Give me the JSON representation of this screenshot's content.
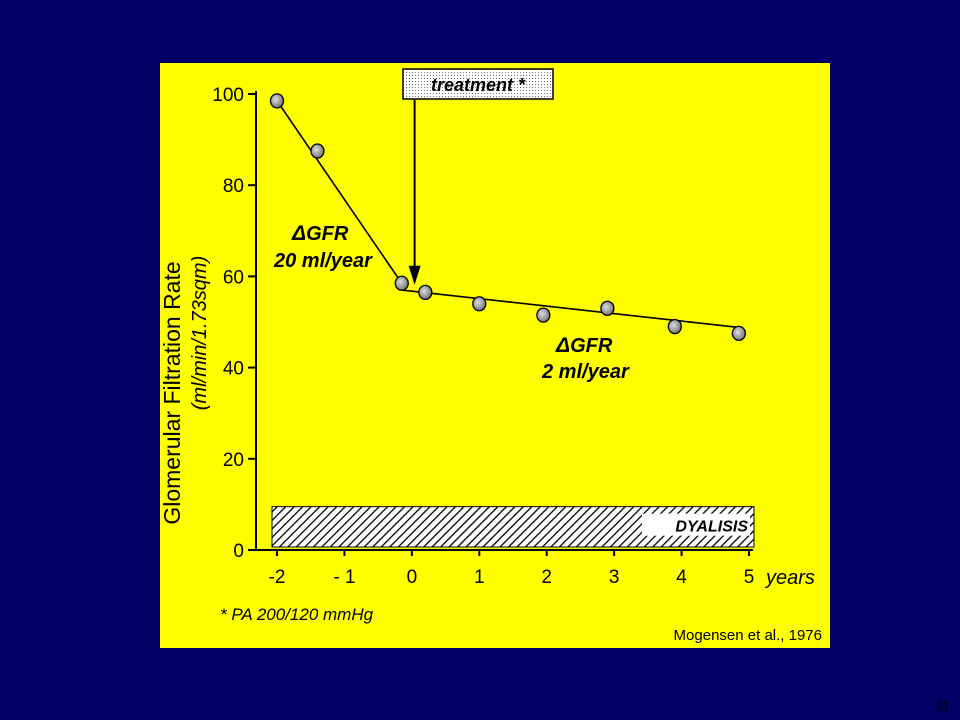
{
  "page_number": "31",
  "panel_color": "#ffff00",
  "background_color": "#000066",
  "chart_data": {
    "type": "scatter",
    "xlabel": "years",
    "ylabel": "Glomerular Filtration Rate",
    "ylabel_units": "(ml/min/1.73sqm)",
    "xlim": [
      -2,
      5
    ],
    "ylim": [
      0,
      100
    ],
    "x_ticks": [
      -2,
      -1,
      0,
      1,
      2,
      3,
      4,
      5
    ],
    "x_tick_labels": [
      "-2",
      "- 1",
      "0",
      "1",
      "2",
      "3",
      "4",
      "5"
    ],
    "y_ticks": [
      0,
      20,
      40,
      60,
      80,
      100
    ],
    "grid": false,
    "points": [
      {
        "x": -2.0,
        "y": 98.5
      },
      {
        "x": -1.4,
        "y": 87.5
      },
      {
        "x": -0.15,
        "y": 58.5
      },
      {
        "x": 0.2,
        "y": 56.5
      },
      {
        "x": 1.0,
        "y": 54.0
      },
      {
        "x": 1.95,
        "y": 51.5
      },
      {
        "x": 2.9,
        "y": 53.0
      },
      {
        "x": 3.9,
        "y": 49.0
      },
      {
        "x": 4.85,
        "y": 47.5
      }
    ],
    "fit_lines": [
      {
        "x": [
          -2.0,
          -0.15
        ],
        "y": [
          98.5,
          58.5
        ],
        "label_delta": "Δ",
        "label_line1": "GFR",
        "label_line2": "20 ml/year"
      },
      {
        "x": [
          -0.15,
          4.85
        ],
        "y": [
          57.0,
          48.8
        ],
        "label_delta": "Δ",
        "label_line1": "GFR",
        "label_line2": "2 ml/year"
      }
    ],
    "treatment": {
      "label": "treatment *",
      "x": 0.1
    },
    "dialysis_band": {
      "label": "DYALISIS",
      "y_range": [
        0,
        9.5
      ]
    },
    "footnote": "* PA  200/120 mmHg",
    "citation": "Mogensen et al., 1976"
  }
}
